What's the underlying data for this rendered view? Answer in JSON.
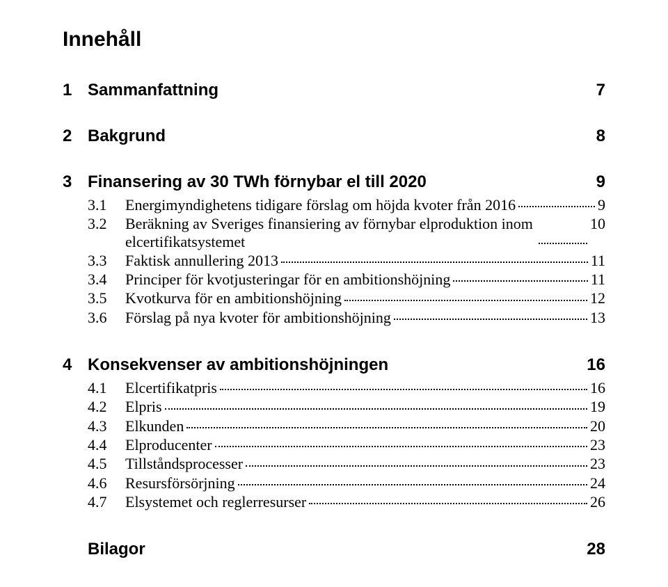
{
  "title": "Innehåll",
  "sections": [
    {
      "num": "1",
      "title": "Sammanfattning",
      "page": "7",
      "items": []
    },
    {
      "num": "2",
      "title": "Bakgrund",
      "page": "8",
      "items": []
    },
    {
      "num": "3",
      "title": "Finansering av 30 TWh förnybar el till 2020",
      "page": "9",
      "items": [
        {
          "num": "3.1",
          "title": "Energimyndighetens tidigare förslag om höjda kvoter från 2016",
          "page": "9"
        },
        {
          "num": "3.2",
          "title": "Beräkning av Sveriges finansiering av förnybar elproduktion inom elcertifikatsystemet",
          "page": "10"
        },
        {
          "num": "3.3",
          "title": "Faktisk annullering 2013",
          "page": "11"
        },
        {
          "num": "3.4",
          "title": "Principer för kvotjusteringar för en ambitionshöjning",
          "page": "11"
        },
        {
          "num": "3.5",
          "title": "Kvotkurva för en ambitionshöjning",
          "page": "12"
        },
        {
          "num": "3.6",
          "title": "Förslag på nya kvoter för ambitionshöjning",
          "page": "13"
        }
      ]
    },
    {
      "num": "4",
      "title": "Konsekvenser av ambitionshöjningen",
      "page": "16",
      "items": [
        {
          "num": "4.1",
          "title": "Elcertifikatpris",
          "page": "16"
        },
        {
          "num": "4.2",
          "title": "Elpris",
          "page": "19"
        },
        {
          "num": "4.3",
          "title": "Elkunden",
          "page": "20"
        },
        {
          "num": "4.4",
          "title": "Elproducenter",
          "page": "23"
        },
        {
          "num": "4.5",
          "title": "Tillståndsprocesser",
          "page": "23"
        },
        {
          "num": "4.6",
          "title": "Resursförsörjning",
          "page": "24"
        },
        {
          "num": "4.7",
          "title": "Elsystemet och reglerresurser",
          "page": "26"
        }
      ]
    },
    {
      "num": "",
      "title": "Bilagor",
      "page": "28",
      "last": true,
      "items": []
    }
  ]
}
